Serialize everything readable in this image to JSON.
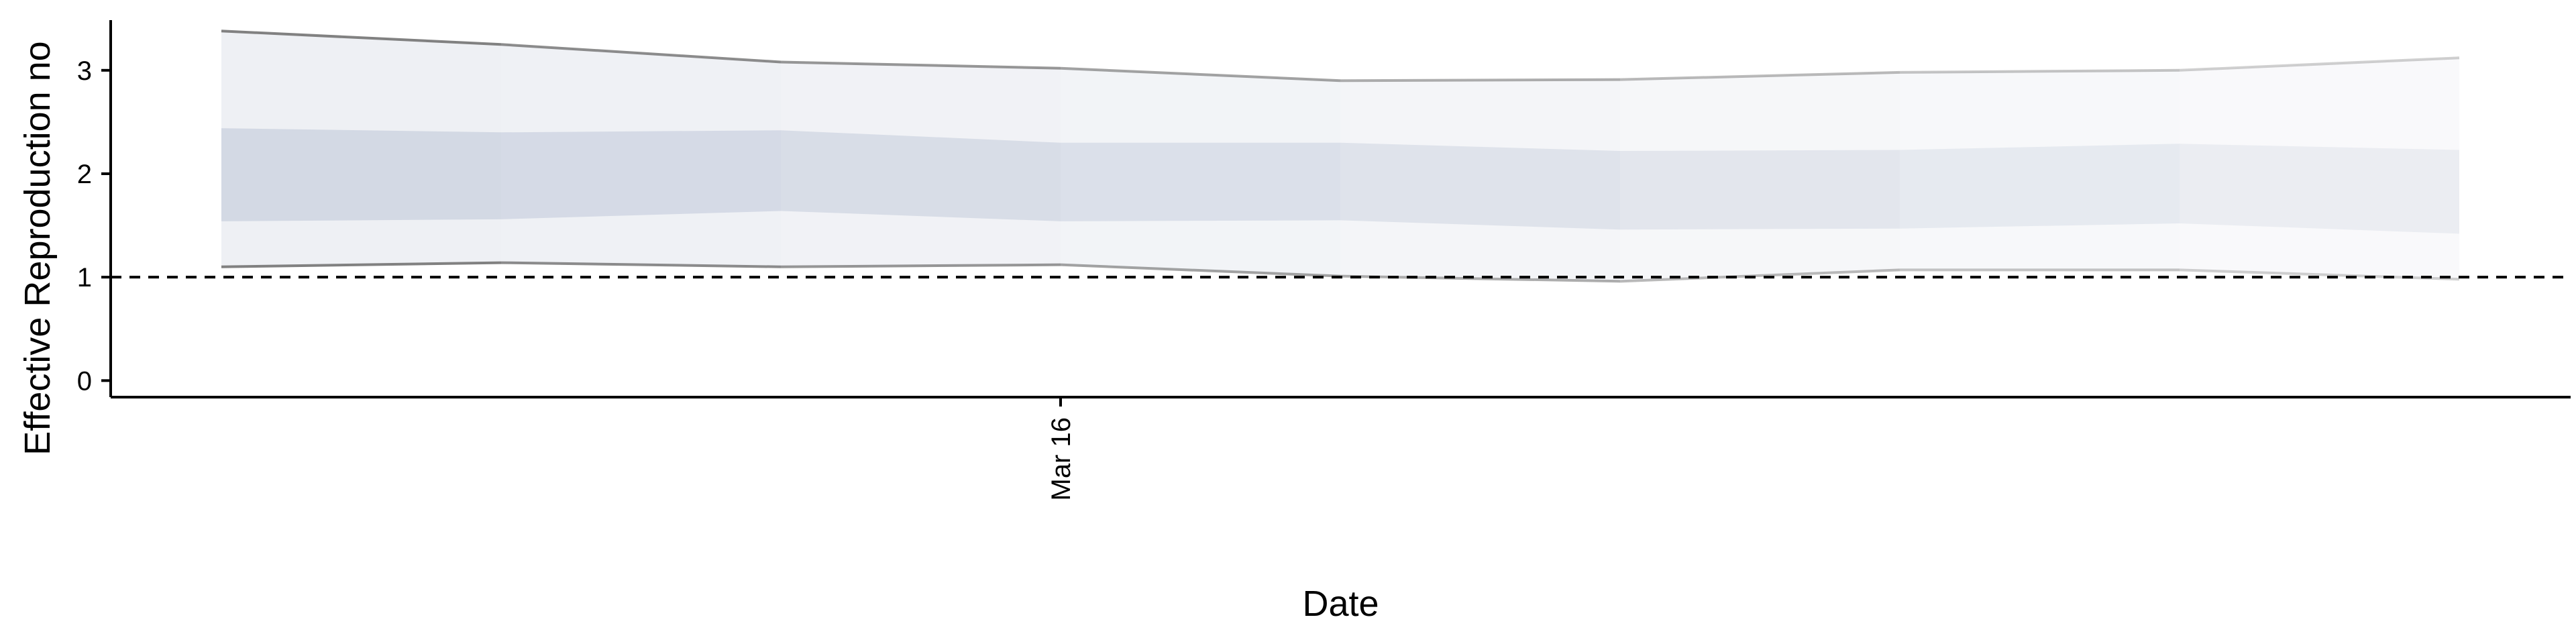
{
  "chart_data": {
    "type": "area",
    "title": "",
    "xlabel": "Date",
    "ylabel": "Effective Reproduction no",
    "ylim": [
      -0.16,
      3.55
    ],
    "yticks": [
      0,
      1,
      2,
      3
    ],
    "x_tick_labels": [
      "Mar 16"
    ],
    "x_tick_dates": [
      "2020-03-16"
    ],
    "x": [
      "2020-03-13",
      "2020-03-14",
      "2020-03-15",
      "2020-03-16",
      "2020-03-17",
      "2020-03-18",
      "2020-03-19",
      "2020-03-20",
      "2020-03-21"
    ],
    "outer_upper": [
      3.38,
      3.25,
      3.08,
      3.02,
      2.9,
      2.91,
      2.98,
      3.0,
      3.12
    ],
    "outer_lower": [
      1.1,
      1.14,
      1.1,
      1.12,
      1.01,
      0.96,
      1.07,
      1.07,
      0.98
    ],
    "inner_upper": [
      2.44,
      2.4,
      2.42,
      2.3,
      2.3,
      2.22,
      2.23,
      2.29,
      2.23
    ],
    "inner_lower": [
      1.54,
      1.56,
      1.64,
      1.54,
      1.55,
      1.46,
      1.47,
      1.52,
      1.42
    ],
    "reference_line": 1,
    "grid": false,
    "legend": "none",
    "colors": {
      "inner_band": "#d1d7e3",
      "outer_band": "#eceef3",
      "outer_line": "#7a7a7a",
      "reference": "#000000"
    }
  }
}
